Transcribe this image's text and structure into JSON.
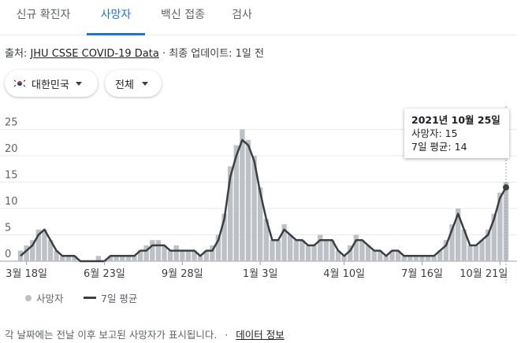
{
  "tabs": [
    "신규 확진자",
    "사망자",
    "백신 접종",
    "검사"
  ],
  "active_tab": 1,
  "source": {
    "prefix": "출처: ",
    "link": "JHU CSSE COVID-19 Data",
    "suffix": " · 최종 업데이트: 1일 전"
  },
  "filters": {
    "country": "대한민국",
    "scope": "전체"
  },
  "tooltip": {
    "date": "2021년 10월 25일",
    "deaths": "사망자: 15",
    "avg": "7일 평균: 14"
  },
  "legend": {
    "daily": "사망자",
    "avg": "7일 평균"
  },
  "footer": {
    "note": "각 날짜에는 전날 이후 보고된 사망자가 표시됩니다.",
    "sep": "·",
    "link": "데이터 정보"
  },
  "colors": {
    "bar": "#bdc1c6",
    "line": "#3c4043",
    "accent": "#1a73e8",
    "grid": "#e8eaed"
  },
  "chart_data": {
    "type": "bar",
    "yticks": [
      0,
      5,
      10,
      15,
      20,
      25
    ],
    "ylim": [
      0,
      28
    ],
    "xticks": [
      "3월 18일",
      "6월 23일",
      "9월 28일",
      "1월 3일",
      "4월 10일",
      "7월 16일",
      "10월 21일"
    ],
    "series": [
      {
        "name": "사망자",
        "kind": "bar",
        "period_days": 7,
        "values": [
          2,
          3,
          4,
          6,
          6,
          4,
          2,
          1,
          1,
          1,
          0,
          0,
          0,
          1,
          0,
          1,
          1,
          1,
          1,
          1,
          2,
          3,
          4,
          4,
          3,
          2,
          3,
          2,
          2,
          2,
          1,
          2,
          3,
          5,
          9,
          18,
          22,
          25,
          23,
          20,
          14,
          8,
          4,
          4,
          7,
          5,
          4,
          4,
          3,
          3,
          5,
          4,
          4,
          2,
          1,
          3,
          5,
          4,
          3,
          2,
          2,
          1,
          2,
          2,
          1,
          1,
          1,
          1,
          1,
          1,
          2,
          4,
          7,
          10,
          6,
          3,
          3,
          4,
          6,
          9,
          13,
          15
        ]
      },
      {
        "name": "7일 평균",
        "kind": "line",
        "period_days": 7,
        "values": [
          1,
          2,
          3,
          5,
          6,
          4,
          2,
          1,
          1,
          1,
          0,
          0,
          0,
          0,
          0,
          1,
          1,
          1,
          1,
          1,
          2,
          2,
          3,
          3,
          3,
          2,
          2,
          2,
          2,
          2,
          1,
          2,
          2,
          4,
          8,
          16,
          20,
          23,
          22,
          19,
          13,
          8,
          4,
          4,
          6,
          5,
          4,
          4,
          3,
          3,
          4,
          4,
          4,
          2,
          1,
          2,
          4,
          4,
          3,
          2,
          2,
          1,
          2,
          2,
          1,
          1,
          1,
          1,
          1,
          1,
          2,
          3,
          6,
          9,
          6,
          3,
          3,
          4,
          5,
          8,
          12,
          14
        ]
      }
    ],
    "highlight": {
      "index": 81,
      "daily": 15,
      "avg": 14
    }
  }
}
